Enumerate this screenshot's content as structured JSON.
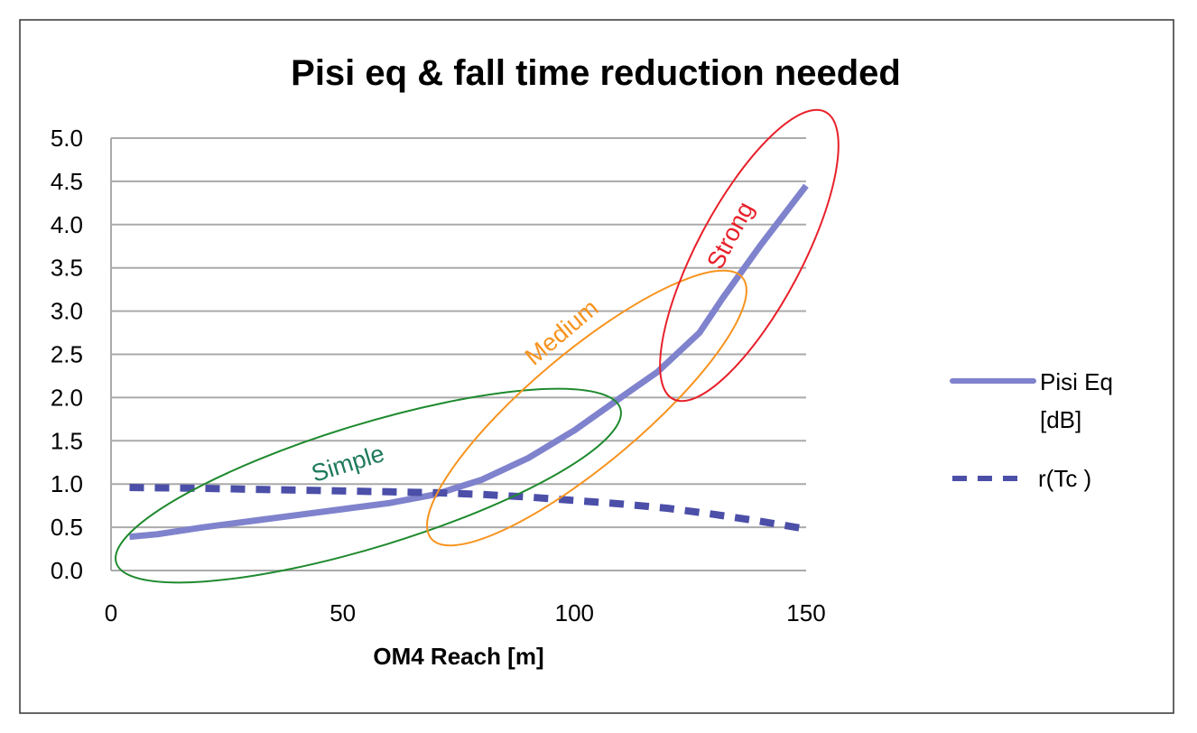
{
  "chart_data": {
    "type": "line",
    "title": "Pisi eq & fall time reduction needed",
    "xlabel": "OM4 Reach [m]",
    "ylabel": "",
    "xlim": [
      0,
      150
    ],
    "ylim": [
      0,
      5
    ],
    "xticks": [
      "0",
      "50",
      "100",
      "150"
    ],
    "xtick_values": [
      0,
      50,
      100,
      150
    ],
    "yticks": [
      "0.0",
      "0.5",
      "1.0",
      "1.5",
      "2.0",
      "2.5",
      "3.0",
      "3.5",
      "4.0",
      "4.5",
      "5.0"
    ],
    "ytick_values": [
      0,
      0.5,
      1,
      1.5,
      2,
      2.5,
      3,
      3.5,
      4,
      4.5,
      5
    ],
    "grid": "horizontal",
    "legend_position": "right",
    "series": [
      {
        "name": "Pisi Eq [dB]",
        "name_lines": [
          "Pisi Eq",
          "[dB]"
        ],
        "style": "solid",
        "color": "#7f82cc",
        "x": [
          4,
          10,
          20,
          30,
          40,
          50,
          60,
          70,
          80,
          90,
          100,
          110,
          118,
          127,
          132,
          140,
          150
        ],
        "y": [
          0.39,
          0.42,
          0.5,
          0.57,
          0.64,
          0.71,
          0.78,
          0.88,
          1.05,
          1.3,
          1.62,
          2.0,
          2.3,
          2.75,
          3.15,
          3.75,
          4.45
        ]
      },
      {
        "name": "r(Tc )",
        "style": "dashed",
        "color": "#4b4fa8",
        "x": [
          4,
          20,
          40,
          60,
          70,
          80,
          90,
          100,
          110,
          120,
          130,
          140,
          150
        ],
        "y": [
          0.96,
          0.95,
          0.93,
          0.91,
          0.9,
          0.88,
          0.85,
          0.81,
          0.77,
          0.72,
          0.65,
          0.57,
          0.48
        ]
      }
    ],
    "annotations": [
      {
        "label": "Simple",
        "color": "#1e8a2e",
        "text_color": "#1f7a5a"
      },
      {
        "label": "Medium",
        "color": "#f7931e",
        "text_color": "#f7931e"
      },
      {
        "label": "Strong",
        "color": "#e8202a",
        "text_color": "#e8202a"
      }
    ]
  }
}
